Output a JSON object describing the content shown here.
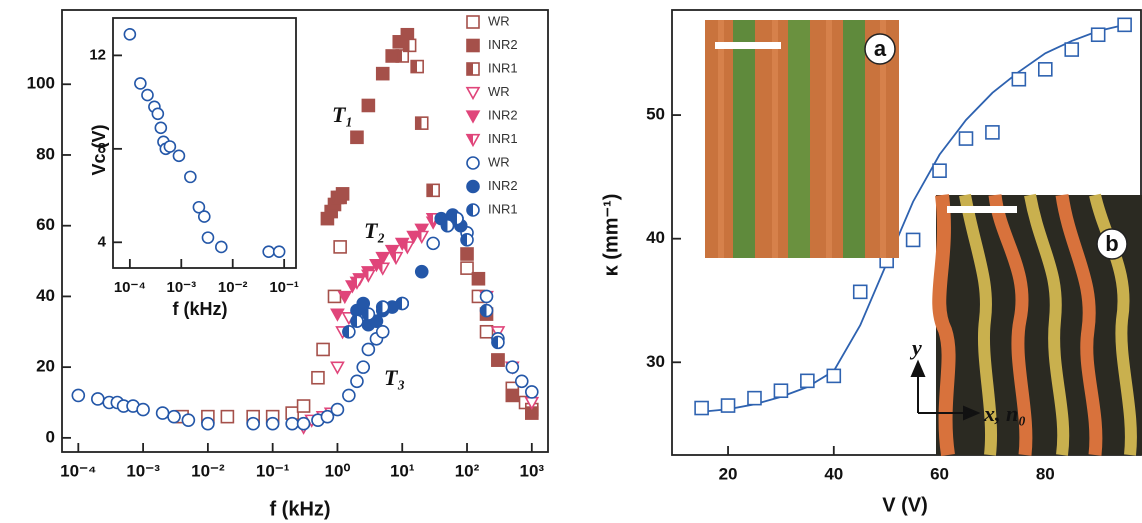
{
  "chart_data": [
    {
      "type": "scatter",
      "xlog": true,
      "xlim": [
        5.6e-05,
        1778
      ],
      "ylim": [
        -4,
        121
      ],
      "xticks": [
        {
          "value": 0.0001,
          "label": "10⁻⁴"
        },
        {
          "value": 0.001,
          "label": "10⁻³"
        },
        {
          "value": 0.01,
          "label": "10⁻²"
        },
        {
          "value": 0.1,
          "label": "10⁻¹"
        },
        {
          "value": 1,
          "label": "10⁰"
        },
        {
          "value": 10,
          "label": "10¹"
        },
        {
          "value": 100,
          "label": "10²"
        },
        {
          "value": 1000,
          "label": "10³"
        }
      ],
      "yticks": [
        0,
        20,
        40,
        60,
        80,
        100
      ],
      "xlabel": "f  (kHz)",
      "legend": "upper right",
      "annotations": [
        "T₁",
        "T₂",
        "T₃"
      ],
      "series": [
        {
          "name": "WR",
          "color": "#a5504a",
          "marker": "square",
          "fill": "open",
          "x": [
            0.004,
            0.01,
            0.02,
            0.05,
            0.1,
            0.2,
            0.3,
            0.5,
            0.6,
            0.9,
            1.1,
            100,
            150,
            200,
            300,
            500,
            800,
            1000
          ],
          "values": [
            6,
            6,
            6,
            6,
            6,
            7,
            9,
            17,
            25,
            40,
            54,
            48,
            40,
            30,
            22,
            14,
            10,
            8
          ]
        },
        {
          "name": "INR2",
          "color": "#a5504a",
          "marker": "square",
          "fill": "full",
          "x": [
            0.7,
            0.8,
            0.9,
            1,
            1.1,
            1.2,
            2,
            3,
            5,
            7,
            9,
            12,
            100,
            150,
            200,
            300,
            500,
            1000
          ],
          "values": [
            62,
            64,
            66,
            68,
            68,
            69,
            85,
            94,
            103,
            108,
            112,
            114,
            52,
            45,
            35,
            22,
            12,
            7
          ]
        },
        {
          "name": "INR1",
          "color": "#a5504a",
          "marker": "square",
          "fill": "half",
          "x": [
            10,
            13,
            17,
            20,
            30
          ],
          "values": [
            108,
            111,
            105,
            89,
            70
          ]
        },
        {
          "name": "WR",
          "color": "#e0457a",
          "marker": "triangle",
          "fill": "open",
          "x": [
            0.3,
            0.4,
            0.6,
            0.8,
            1,
            1.2,
            1.5,
            200,
            300,
            500,
            1000
          ],
          "values": [
            3,
            5,
            6,
            7,
            20,
            30,
            34,
            40,
            30,
            20,
            10
          ]
        },
        {
          "name": "INR2",
          "color": "#e0457a",
          "marker": "triangle",
          "fill": "full",
          "x": [
            1,
            1.3,
            1.7,
            2.2,
            3,
            4,
            5,
            7,
            10,
            15,
            20,
            30
          ],
          "values": [
            35,
            40,
            43,
            45,
            47,
            49,
            51,
            53,
            55,
            57,
            59,
            61
          ]
        },
        {
          "name": "INR1",
          "color": "#e0457a",
          "marker": "triangle",
          "fill": "half",
          "x": [
            2,
            3,
            5,
            8,
            12,
            20,
            30
          ],
          "values": [
            44,
            46,
            48,
            51,
            54,
            57,
            62
          ]
        },
        {
          "name": "WR",
          "color": "#2457a8",
          "marker": "circle",
          "fill": "open",
          "x": [
            0.0001,
            0.0002,
            0.0003,
            0.0004,
            0.0005,
            0.0007,
            0.001,
            0.002,
            0.003,
            0.005,
            0.01,
            0.05,
            0.1,
            0.2,
            0.3,
            0.5,
            0.7,
            1,
            1.5,
            2,
            2.5,
            3,
            4,
            5,
            30,
            50,
            70,
            100,
            200,
            300,
            500,
            700,
            1000
          ],
          "values": [
            12,
            11,
            10,
            10,
            9,
            9,
            8,
            7,
            6,
            5,
            4,
            4,
            4,
            4,
            4,
            5,
            6,
            8,
            12,
            16,
            20,
            25,
            28,
            30,
            55,
            60,
            62,
            58,
            40,
            28,
            20,
            16,
            13
          ]
        },
        {
          "name": "INR2",
          "color": "#2457a8",
          "marker": "circle",
          "fill": "full",
          "x": [
            2,
            2.5,
            3,
            4,
            5,
            7,
            10,
            20,
            40,
            60,
            80
          ],
          "values": [
            36,
            38,
            32,
            33,
            36,
            37,
            38,
            47,
            62,
            63,
            60
          ]
        },
        {
          "name": "INR1",
          "color": "#2457a8",
          "marker": "circle",
          "fill": "half",
          "x": [
            1.5,
            2,
            3,
            5,
            10,
            50,
            70,
            100,
            200,
            300
          ],
          "values": [
            30,
            33,
            35,
            37,
            38,
            60,
            62,
            56,
            36,
            27
          ]
        }
      ]
    },
    {
      "type": "scatter",
      "xlog": true,
      "xlim": [
        4.7e-05,
        0.17
      ],
      "ylim": [
        2.9,
        13.6
      ],
      "xticks": [
        {
          "value": 0.0001,
          "label": "10⁻⁴"
        },
        {
          "value": 0.001,
          "label": "10⁻³"
        },
        {
          "value": 0.01,
          "label": "10⁻²"
        },
        {
          "value": 0.1,
          "label": "10⁻¹"
        }
      ],
      "yticks": [
        4,
        8,
        12
      ],
      "xlabel": "f (kHz)",
      "ylabel": "Vc (V)",
      "series": [
        {
          "color": "#2457a8",
          "marker": "circle",
          "fill": "open",
          "x": [
            0.0001,
            0.00016,
            0.00022,
            0.0003,
            0.00035,
            0.0004,
            0.00045,
            0.0005,
            0.0006,
            0.0009,
            0.0015,
            0.0022,
            0.0028,
            0.0033,
            0.006,
            0.05,
            0.08
          ],
          "values": [
            12.9,
            10.8,
            10.3,
            9.8,
            9.5,
            8.9,
            8.3,
            8.0,
            8.1,
            7.7,
            6.8,
            5.5,
            5.1,
            4.2,
            3.8,
            3.6,
            3.6
          ]
        }
      ]
    },
    {
      "type": "scatter",
      "xlim": [
        9.4,
        98.1
      ],
      "ylim": [
        22.5,
        58.5
      ],
      "xticks": [
        20,
        40,
        60,
        80
      ],
      "yticks": [
        30,
        40,
        50
      ],
      "xlabel": "V (V)",
      "ylabel": "κ (mm⁻¹)",
      "panel_labels": [
        "a",
        "b"
      ],
      "annotations": [
        "y",
        "x, n₀"
      ],
      "series": [
        {
          "color": "#2e62b0",
          "marker": "none",
          "x": [
            15,
            20,
            25,
            30,
            35,
            40,
            45,
            50,
            55,
            60,
            65,
            70,
            75,
            80,
            85,
            90,
            95
          ],
          "values": [
            26,
            26.2,
            26.6,
            27.2,
            28,
            29.3,
            33,
            38,
            43,
            46.8,
            49.6,
            51.8,
            53.5,
            55,
            56,
            56.8,
            57.3
          ]
        },
        {
          "color": "#2e62b0",
          "marker": "square",
          "fill": "open",
          "x": [
            15,
            20,
            25,
            30,
            35,
            40,
            45,
            50,
            55,
            60,
            65,
            70,
            75,
            80,
            85,
            90,
            95
          ],
          "values": [
            26.3,
            26.5,
            27.1,
            27.7,
            28.5,
            28.9,
            35.7,
            38.2,
            39.9,
            45.5,
            48.1,
            48.6,
            52.9,
            53.7,
            55.3,
            56.5,
            57.3
          ]
        }
      ]
    }
  ]
}
